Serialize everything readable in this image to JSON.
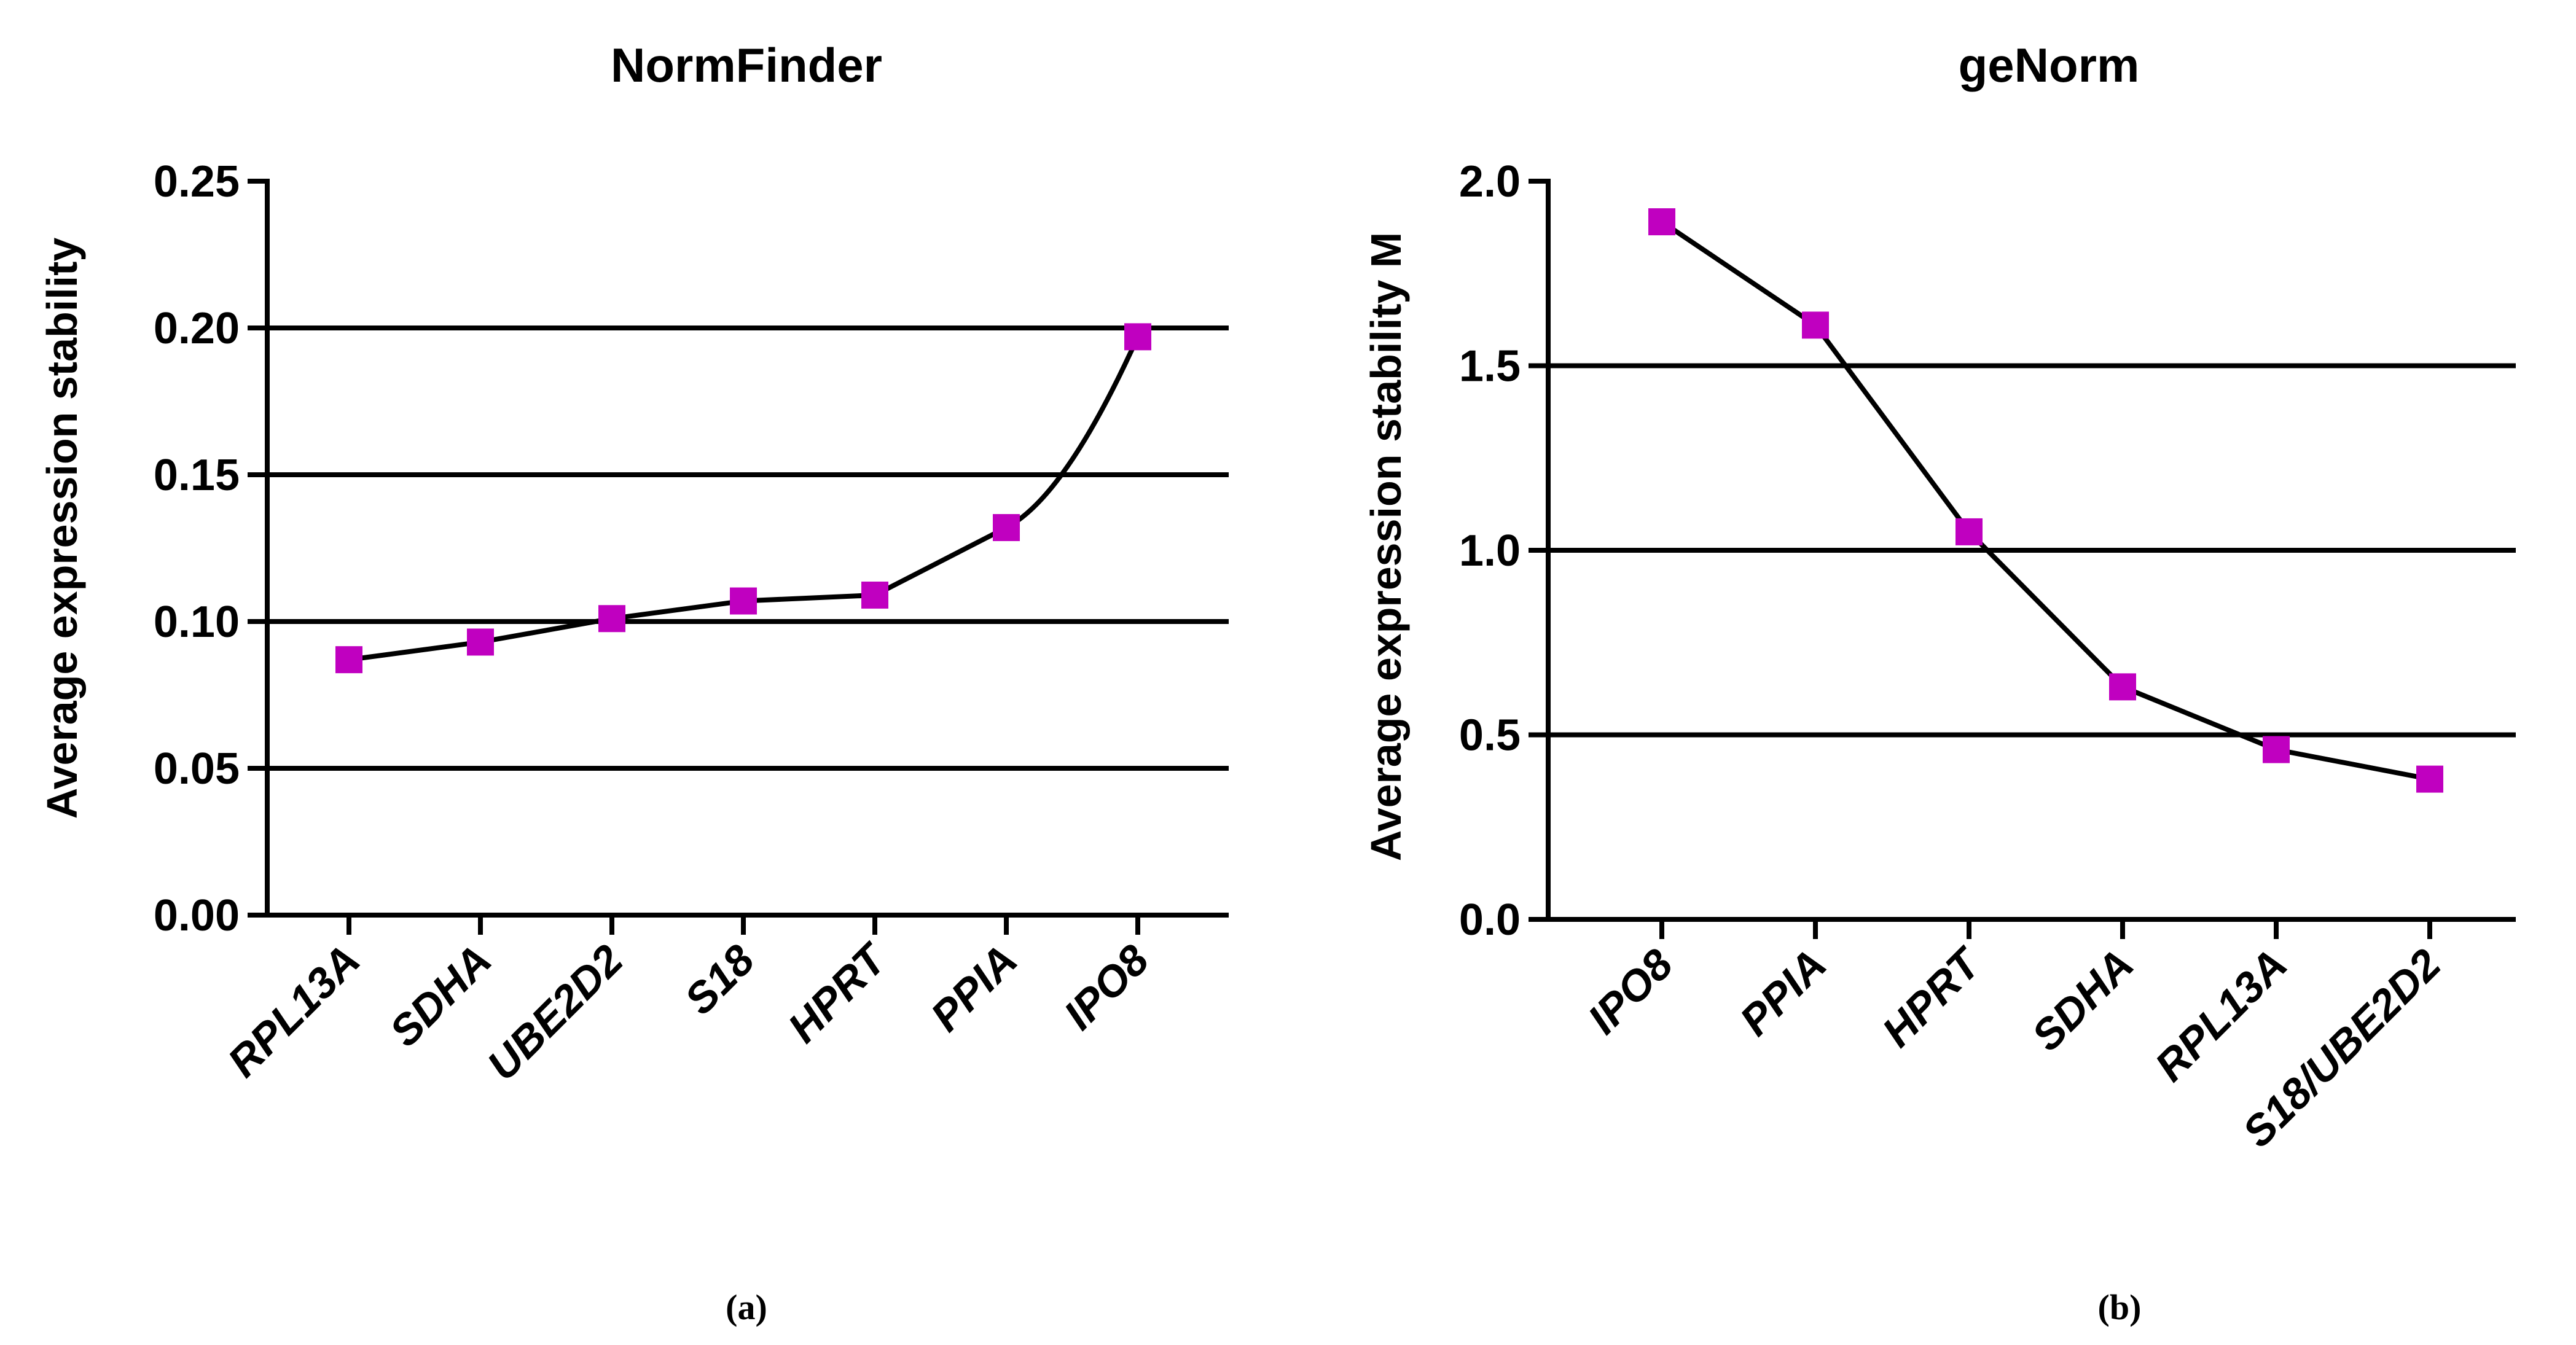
{
  "chart_data": [
    {
      "type": "line",
      "panel": "(a)",
      "title": "NormFinder",
      "xlabel": "",
      "ylabel": "Average expression stability",
      "ylim": [
        0,
        0.25
      ],
      "yticks": [
        "0.00",
        "0.05",
        "0.10",
        "0.15",
        "0.20",
        "0.25"
      ],
      "grid": "horizontal",
      "categories": [
        "RPL13A",
        "SDHA",
        "UBE2D2",
        "S18",
        "HPRT",
        "PPIA",
        "IPO8"
      ],
      "series": [
        {
          "values": [
            0.087,
            0.093,
            0.101,
            0.107,
            0.109,
            0.132,
            0.197
          ]
        }
      ],
      "marker_color": "#c000c0",
      "line_color": "#000000"
    },
    {
      "type": "line",
      "panel": "(b)",
      "title": "geNorm",
      "xlabel": "",
      "ylabel": "Average expression stability M",
      "ylim": [
        0,
        2.0
      ],
      "yticks": [
        "0.0",
        "0.5",
        "1.0",
        "1.5",
        "2.0"
      ],
      "grid": "horizontal",
      "categories": [
        "IPO8",
        "PPIA",
        "HPRT",
        "SDHA",
        "RPL13A",
        "S18/UBE2D2"
      ],
      "series": [
        {
          "values": [
            1.89,
            1.61,
            1.05,
            0.63,
            0.46,
            0.38
          ]
        }
      ],
      "marker_color": "#c000c0",
      "line_color": "#000000"
    }
  ]
}
